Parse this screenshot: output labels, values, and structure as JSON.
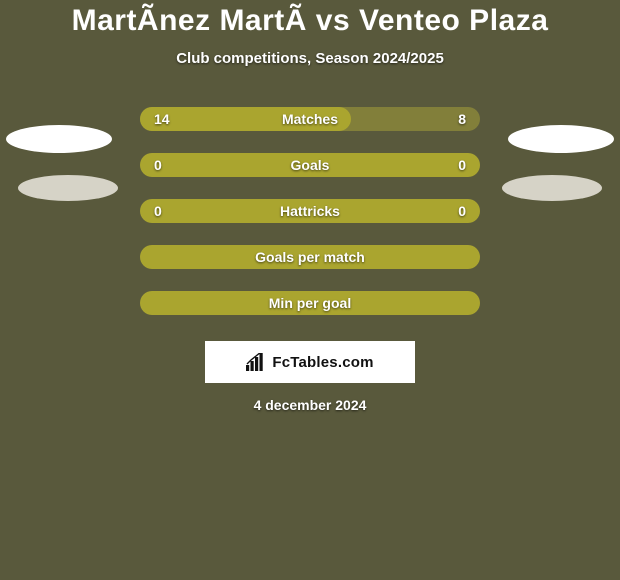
{
  "background_color": "#59593c",
  "title": "MartÃnez MartÃ vs Venteo Plaza",
  "subtitle": "Club competitions, Season 2024/2025",
  "rows": [
    {
      "label": "Matches",
      "left": "14",
      "right": "8",
      "left_fill_pct": 62,
      "bg": "#827f3a",
      "fill": "#aaa52f"
    },
    {
      "label": "Goals",
      "left": "0",
      "right": "0",
      "left_fill_pct": 0,
      "bg": "#aaa52f",
      "fill": "#aaa52f"
    },
    {
      "label": "Hattricks",
      "left": "0",
      "right": "0",
      "left_fill_pct": 0,
      "bg": "#aaa52f",
      "fill": "#aaa52f"
    },
    {
      "label": "Goals per match",
      "left": "",
      "right": "",
      "left_fill_pct": 0,
      "bg": "#aaa52f",
      "fill": "#aaa52f"
    },
    {
      "label": "Min per goal",
      "left": "",
      "right": "",
      "left_fill_pct": 0,
      "bg": "#aaa52f",
      "fill": "#aaa52f"
    }
  ],
  "ellipses": {
    "pair1": {
      "left_color": "#ffffff",
      "right_color": "#ffffff"
    },
    "pair2": {
      "left_color": "#ece9df",
      "right_color": "#ece9df"
    }
  },
  "logo_text": "FcTables.com",
  "date": "4 december 2024",
  "typography": {
    "title_fontsize": 30,
    "subtitle_fontsize": 15,
    "label_fontsize": 14
  }
}
